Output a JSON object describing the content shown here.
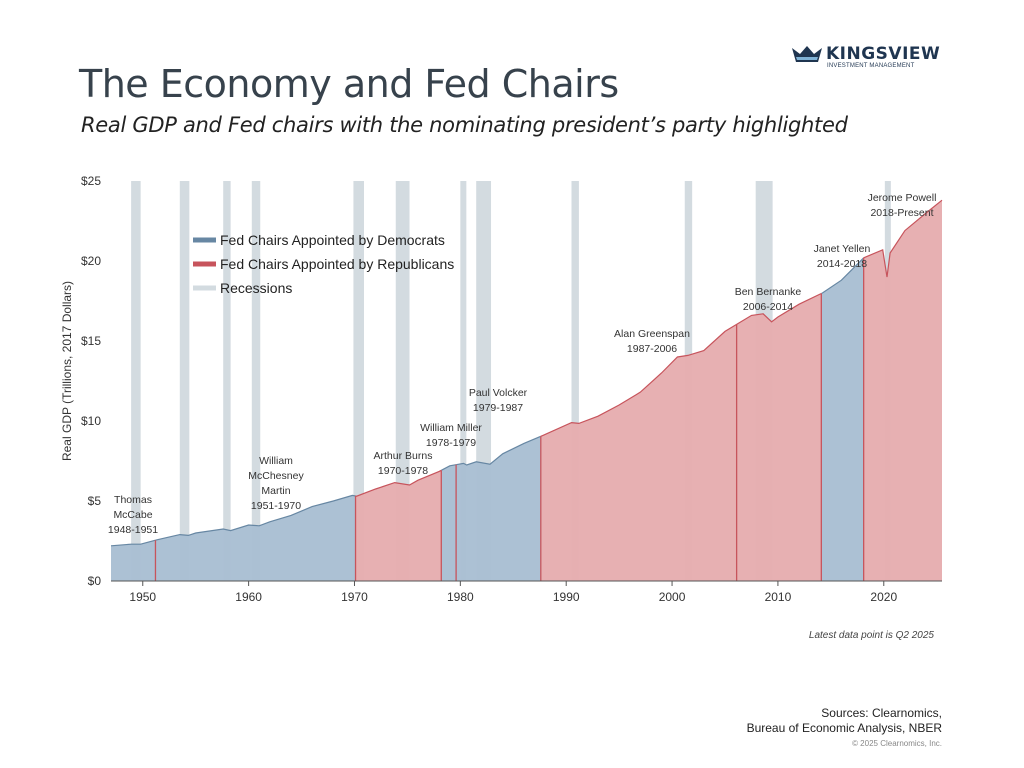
{
  "header": {
    "title": "The Economy and Fed Chairs",
    "subtitle": "Real GDP and Fed chairs with the nominating president’s party highlighted"
  },
  "logo": {
    "name": "KINGSVIEW",
    "tagline": "INVESTMENT MANAGEMENT",
    "icon": "crown-logo-icon",
    "color": "#1f3550"
  },
  "footer": {
    "note": "Latest data point is Q2 2025",
    "sources_line1": "Sources: Clearnomics,",
    "sources_line2": "Bureau of Economic Analysis, NBER",
    "copyright": "© 2025 Clearnomics, Inc."
  },
  "chart_data": {
    "type": "area",
    "ylabel": "Real GDP (Trillions, 2017 Dollars)",
    "xlim": [
      1947,
      2025.5
    ],
    "ylim": [
      0,
      25
    ],
    "x_ticks": [
      1950,
      1960,
      1970,
      1980,
      1990,
      2000,
      2010,
      2020
    ],
    "y_ticks": [
      0,
      5,
      10,
      15,
      20,
      25
    ],
    "y_tick_labels": [
      "$0",
      "$5",
      "$10",
      "$15",
      "$20",
      "$25"
    ],
    "grid": false,
    "legend_placement": "top-left",
    "colors": {
      "democrat": "#a9bfd3",
      "democrat_line": "#6787a3",
      "republican": "#e6adaf",
      "republican_line": "#c7545c",
      "recession": "#d3dbe0"
    },
    "legend": [
      {
        "label": "Fed Chairs Appointed by Democrats",
        "key": "democrat"
      },
      {
        "label": "Fed Chairs Appointed by Republicans",
        "key": "republican"
      },
      {
        "label": "Recessions",
        "key": "recession"
      }
    ],
    "gdp": [
      [
        1947,
        2.2
      ],
      [
        1948.9,
        2.3
      ],
      [
        1949.8,
        2.3
      ],
      [
        1951.5,
        2.6
      ],
      [
        1953.5,
        2.9
      ],
      [
        1954.3,
        2.85
      ],
      [
        1955,
        3.0
      ],
      [
        1957.6,
        3.25
      ],
      [
        1958.3,
        3.15
      ],
      [
        1960,
        3.5
      ],
      [
        1961,
        3.45
      ],
      [
        1962,
        3.7
      ],
      [
        1964,
        4.1
      ],
      [
        1966,
        4.65
      ],
      [
        1968,
        5.0
      ],
      [
        1969.8,
        5.35
      ],
      [
        1970.2,
        5.3
      ],
      [
        1972,
        5.75
      ],
      [
        1973.8,
        6.15
      ],
      [
        1975.2,
        6.0
      ],
      [
        1976,
        6.3
      ],
      [
        1978,
        6.85
      ],
      [
        1979,
        7.2
      ],
      [
        1980.3,
        7.35
      ],
      [
        1980.6,
        7.25
      ],
      [
        1981.5,
        7.45
      ],
      [
        1982.8,
        7.3
      ],
      [
        1984,
        7.95
      ],
      [
        1986,
        8.6
      ],
      [
        1987.8,
        9.1
      ],
      [
        1990.5,
        9.9
      ],
      [
        1991.2,
        9.85
      ],
      [
        1993,
        10.3
      ],
      [
        1995,
        11.0
      ],
      [
        1997,
        11.8
      ],
      [
        1999,
        13.0
      ],
      [
        2000.5,
        14.0
      ],
      [
        2001.5,
        14.1
      ],
      [
        2003,
        14.4
      ],
      [
        2005,
        15.6
      ],
      [
        2007.5,
        16.6
      ],
      [
        2008.6,
        16.7
      ],
      [
        2009.4,
        16.2
      ],
      [
        2010,
        16.5
      ],
      [
        2012,
        17.3
      ],
      [
        2014.2,
        18.0
      ],
      [
        2016,
        18.8
      ],
      [
        2018.1,
        20.2
      ],
      [
        2019.9,
        20.7
      ],
      [
        2020.3,
        19.0
      ],
      [
        2020.6,
        20.5
      ],
      [
        2022,
        21.9
      ],
      [
        2024,
        23.0
      ],
      [
        2025.5,
        23.8
      ]
    ],
    "chairs": [
      {
        "name": "Thomas McCabe",
        "label": [
          "Thomas",
          "McCabe",
          "1948-1951"
        ],
        "start": 1947,
        "end": 1951.2,
        "party": "democrat"
      },
      {
        "name": "William McChesney Martin",
        "label": [
          "William",
          "McChesney",
          "Martin",
          "1951-1970"
        ],
        "start": 1951.2,
        "end": 1970.1,
        "party": "democrat"
      },
      {
        "name": "Arthur Burns",
        "label": [
          "Arthur Burns",
          "1970-1978"
        ],
        "start": 1970.1,
        "end": 1978.2,
        "party": "republican"
      },
      {
        "name": "William Miller",
        "label": [
          "William Miller",
          "1978-1979"
        ],
        "start": 1978.2,
        "end": 1979.6,
        "party": "democrat"
      },
      {
        "name": "Paul Volcker",
        "label": [
          "Paul Volcker",
          "1979-1987"
        ],
        "start": 1979.6,
        "end": 1987.6,
        "party": "democrat"
      },
      {
        "name": "Alan Greenspan",
        "label": [
          "Alan Greenspan",
          "1987-2006"
        ],
        "start": 1987.6,
        "end": 2006.1,
        "party": "republican"
      },
      {
        "name": "Ben Bernanke",
        "label": [
          "Ben Bernanke",
          "2006-2014"
        ],
        "start": 2006.1,
        "end": 2014.1,
        "party": "republican"
      },
      {
        "name": "Janet Yellen",
        "label": [
          "Janet Yellen",
          "2014-2018"
        ],
        "start": 2014.1,
        "end": 2018.1,
        "party": "democrat"
      },
      {
        "name": "Jerome Powell",
        "label": [
          "Jerome Powell",
          "2018-Present"
        ],
        "start": 2018.1,
        "end": 2025.5,
        "party": "republican"
      }
    ],
    "recessions": [
      [
        1948.9,
        1949.8
      ],
      [
        1953.5,
        1954.4
      ],
      [
        1957.6,
        1958.3
      ],
      [
        1960.3,
        1961.1
      ],
      [
        1969.9,
        1970.9
      ],
      [
        1973.9,
        1975.2
      ],
      [
        1980.0,
        1980.5
      ],
      [
        1981.5,
        1982.9
      ],
      [
        1990.5,
        1991.2
      ],
      [
        2001.2,
        2001.9
      ],
      [
        2007.9,
        2009.5
      ],
      [
        2020.1,
        2020.4
      ]
    ]
  }
}
